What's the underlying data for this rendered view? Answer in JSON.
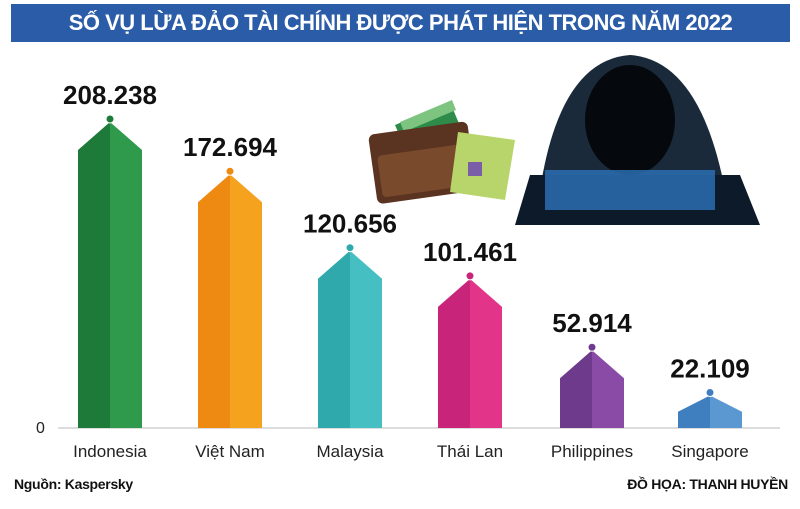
{
  "chart_data": {
    "type": "bar",
    "title": "SỐ VỤ LỪA ĐẢO TÀI CHÍNH ĐƯỢC PHÁT HIỆN TRONG NĂM 2022",
    "categories": [
      "Indonesia",
      "Việt Nam",
      "Malaysia",
      "Thái Lan",
      "Philippines",
      "Singapore"
    ],
    "values": [
      208238,
      172694,
      120656,
      101461,
      52914,
      22109
    ],
    "value_labels": [
      "208.238",
      "172.694",
      "120.656",
      "101.461",
      "52.914",
      "22.109"
    ],
    "colors": [
      "#2f9a4c",
      "#f5a21f",
      "#45bfc2",
      "#e2358a",
      "#8a4ba6",
      "#5b98d2"
    ],
    "dark_colors": [
      "#1e7a38",
      "#ee8a12",
      "#2fa9ab",
      "#c8247a",
      "#6e3a8c",
      "#3f7fc0"
    ],
    "y_tick_labels": [
      "0"
    ],
    "ylim": [
      0,
      208238
    ],
    "grid": false,
    "legend": "none"
  },
  "footer": {
    "source": "Nguồn: Kaspersky",
    "credit": "ĐỒ HỌA: THANH HUYỀN"
  },
  "illustrations": [
    "wallet-icon",
    "hacker-icon"
  ]
}
